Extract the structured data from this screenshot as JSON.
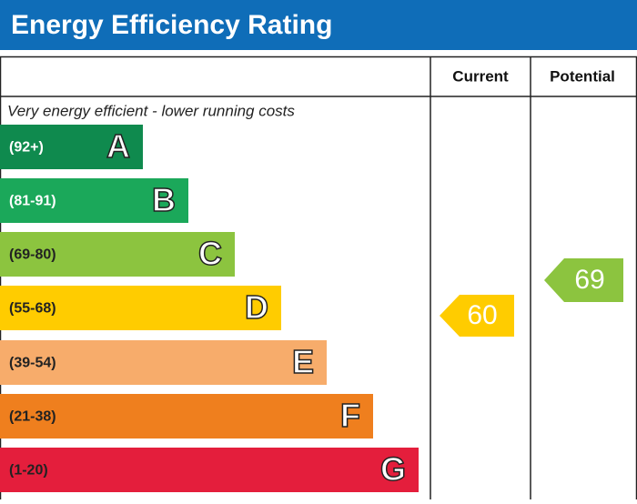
{
  "title": "Energy Efficiency Rating",
  "columns": [
    "Current",
    "Potential"
  ],
  "top_note": "Very energy efficient - lower running costs",
  "bands": [
    {
      "range": "(92+)",
      "letter": "A",
      "color": "#0f8a4e"
    },
    {
      "range": "(81-91)",
      "letter": "B",
      "color": "#1ba85a"
    },
    {
      "range": "(69-80)",
      "letter": "C",
      "color": "#8cc43f"
    },
    {
      "range": "(55-68)",
      "letter": "D",
      "color": "#ffcc00"
    },
    {
      "range": "(39-54)",
      "letter": "E",
      "color": "#f7ac6b"
    },
    {
      "range": "(21-38)",
      "letter": "F",
      "color": "#ef7f1e"
    },
    {
      "range": "(1-20)",
      "letter": "G",
      "color": "#e41e3c"
    }
  ],
  "current": "60",
  "potential": "69"
}
